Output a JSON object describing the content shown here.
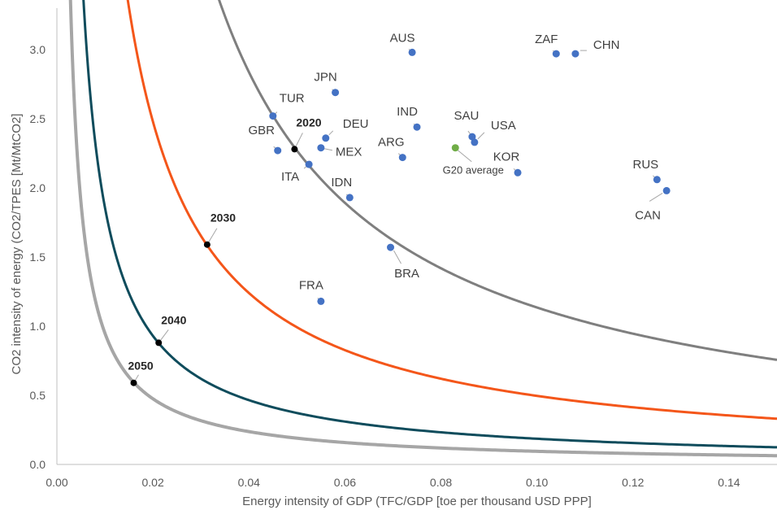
{
  "chart_data": {
    "type": "scatter",
    "xlabel": "Energy intensity of GDP (TFC/GDP [toe per thousand USD PPP]",
    "ylabel": "CO2 intensity of energy (CO2/TPES [Mt/MtCO2]",
    "xlim": [
      0,
      0.15
    ],
    "ylim": [
      0,
      3.3
    ],
    "x_ticks": [
      "0.00",
      "0.02",
      "0.04",
      "0.06",
      "0.08",
      "0.10",
      "0.12",
      "0.14"
    ],
    "y_ticks": [
      "0.0",
      "0.5",
      "1.0",
      "1.5",
      "2.0",
      "2.5",
      "3.0"
    ],
    "grid": false,
    "colors": {
      "country": "#4472C4",
      "average": "#70AD47",
      "year_marker": "#000000",
      "curve_2020": "#7F7F7F",
      "curve_2030": "#F4561A",
      "curve_2040": "#0F4C5C",
      "curve_2050": "#A6A6A6"
    },
    "countries": [
      {
        "label": "AUS",
        "x": 0.074,
        "y": 2.98
      },
      {
        "label": "ZAF",
        "x": 0.104,
        "y": 2.97
      },
      {
        "label": "CHN",
        "x": 0.108,
        "y": 2.97
      },
      {
        "label": "JPN",
        "x": 0.058,
        "y": 2.69
      },
      {
        "label": "TUR",
        "x": 0.045,
        "y": 2.52
      },
      {
        "label": "IND",
        "x": 0.075,
        "y": 2.44
      },
      {
        "label": "DEU",
        "x": 0.056,
        "y": 2.36
      },
      {
        "label": "SAU",
        "x": 0.0865,
        "y": 2.37
      },
      {
        "label": "USA",
        "x": 0.087,
        "y": 2.33
      },
      {
        "label": "GBR",
        "x": 0.046,
        "y": 2.27
      },
      {
        "label": "MEX",
        "x": 0.055,
        "y": 2.29
      },
      {
        "label": "ARG",
        "x": 0.072,
        "y": 2.22
      },
      {
        "label": "ITA",
        "x": 0.0525,
        "y": 2.17
      },
      {
        "label": "KOR",
        "x": 0.096,
        "y": 2.11
      },
      {
        "label": "RUS",
        "x": 0.125,
        "y": 2.06
      },
      {
        "label": "CAN",
        "x": 0.127,
        "y": 1.98
      },
      {
        "label": "IDN",
        "x": 0.061,
        "y": 1.93
      },
      {
        "label": "BRA",
        "x": 0.0695,
        "y": 1.57
      },
      {
        "label": "FRA",
        "x": 0.055,
        "y": 1.18
      }
    ],
    "average": {
      "label": "G20 average",
      "x": 0.083,
      "y": 2.29
    },
    "curves": [
      {
        "year": "2020",
        "label": "2020",
        "k": 0.1135,
        "marker_x": 0.0495,
        "marker_y": 2.28
      },
      {
        "year": "2030",
        "label": "2030",
        "k": 0.0496,
        "marker_x": 0.0313,
        "marker_y": 1.59
      },
      {
        "year": "2040",
        "label": "2040",
        "k": 0.0186,
        "marker_x": 0.0212,
        "marker_y": 0.88
      },
      {
        "year": "2050",
        "label": "2050",
        "k": 0.0095,
        "marker_x": 0.016,
        "marker_y": 0.59
      }
    ]
  }
}
